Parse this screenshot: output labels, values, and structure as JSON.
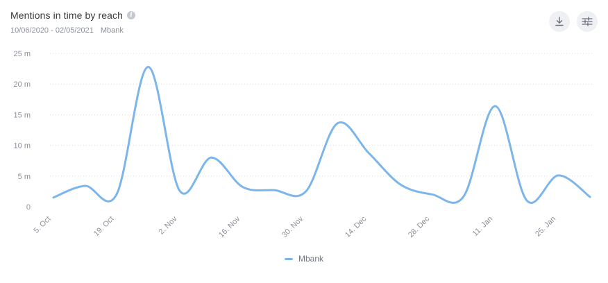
{
  "header": {
    "title": "Mentions in time by reach",
    "info_icon": "info-icon",
    "date_range": "10/06/2020 - 02/05/2021",
    "profile": "Mbank"
  },
  "toolbar": {
    "download_icon": "download-icon",
    "settings_icon": "sliders-icon"
  },
  "chart_data": {
    "type": "line",
    "title": "Mentions in time by reach",
    "xlabel": "",
    "ylabel": "",
    "ylim": [
      0,
      25
    ],
    "y_ticks": [
      0,
      5,
      10,
      15,
      20,
      25
    ],
    "y_tick_labels": [
      "0",
      "5 m",
      "10 m",
      "15 m",
      "20 m",
      "25 m"
    ],
    "x_tick_labels": [
      "5. Oct",
      "19. Oct",
      "2. Nov",
      "16. Nov",
      "30. Nov",
      "14. Dec",
      "28. Dec",
      "11. Jan",
      "25. Jan"
    ],
    "grid": true,
    "legend": "bottom-center",
    "color": "#7cb5ec",
    "series": [
      {
        "name": "Mbank",
        "x": [
          "2020-10-06",
          "2020-10-13",
          "2020-10-20",
          "2020-10-27",
          "2020-11-03",
          "2020-11-10",
          "2020-11-17",
          "2020-11-24",
          "2020-12-01",
          "2020-12-08",
          "2020-12-15",
          "2020-12-22",
          "2020-12-29",
          "2021-01-05",
          "2021-01-12",
          "2021-01-19",
          "2021-01-26",
          "2021-02-02"
        ],
        "values": [
          1.5,
          3.4,
          2.0,
          22.8,
          2.6,
          8.0,
          3.2,
          2.7,
          2.5,
          13.6,
          8.7,
          3.6,
          2.0,
          1.7,
          16.4,
          1.0,
          5.1,
          1.6
        ]
      }
    ]
  }
}
